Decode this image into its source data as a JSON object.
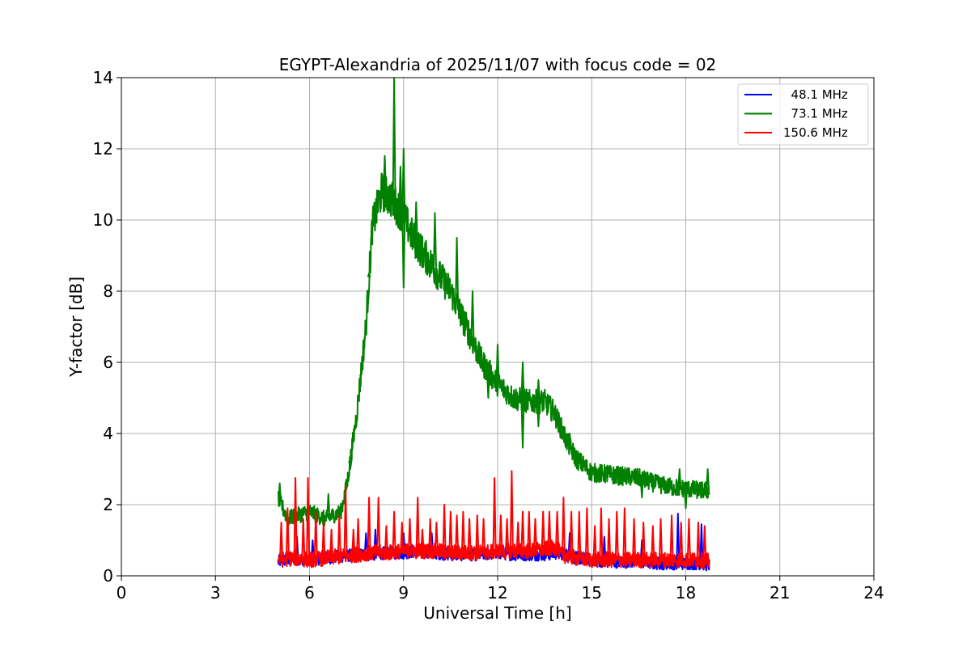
{
  "chart_data": {
    "type": "line",
    "title": "EGYPT-Alexandria of 2025/11/07 with focus code = 02",
    "xlabel": "Universal Time [h]",
    "ylabel": "Y-factor [dB]",
    "xlim": [
      0,
      24
    ],
    "ylim": [
      0,
      14
    ],
    "xticks": [
      0,
      3,
      6,
      9,
      12,
      15,
      18,
      21,
      24
    ],
    "yticks": [
      0,
      2,
      4,
      6,
      8,
      10,
      12,
      14
    ],
    "grid": true,
    "legend_position": "top-right",
    "series": [
      {
        "name": "  48.1 MHz",
        "color": "#0000ff",
        "x": [
          5.0,
          5.5,
          6.0,
          6.5,
          7.0,
          7.5,
          8.0,
          8.5,
          9.0,
          9.5,
          10.0,
          10.5,
          11.0,
          11.5,
          12.0,
          12.5,
          13.0,
          13.5,
          14.0,
          14.5,
          15.0,
          15.5,
          16.0,
          16.5,
          17.0,
          17.5,
          18.0,
          18.5,
          18.75
        ],
        "y": [
          0.4,
          0.5,
          0.45,
          0.5,
          0.55,
          0.6,
          0.6,
          0.65,
          0.65,
          0.7,
          0.65,
          0.6,
          0.6,
          0.6,
          0.65,
          0.6,
          0.6,
          0.6,
          0.65,
          0.5,
          0.45,
          0.4,
          0.4,
          0.4,
          0.35,
          0.35,
          0.35,
          0.35,
          0.3
        ],
        "spikes": [
          [
            5.6,
            1.1
          ],
          [
            6.1,
            1.0
          ],
          [
            7.8,
            1.2
          ],
          [
            8.1,
            1.3
          ],
          [
            9.0,
            1.2
          ],
          [
            9.9,
            1.2
          ],
          [
            13.7,
            1.0
          ],
          [
            14.3,
            1.2
          ],
          [
            15.4,
            1.1
          ],
          [
            16.6,
            1.0
          ],
          [
            17.75,
            1.75
          ],
          [
            18.5,
            1.45
          ]
        ]
      },
      {
        "name": "  73.1 MHz",
        "color": "#008000",
        "x": [
          5.0,
          5.3,
          5.6,
          6.0,
          6.5,
          7.0,
          7.2,
          7.5,
          7.8,
          8.0,
          8.3,
          8.6,
          9.0,
          9.3,
          9.6,
          10.0,
          10.5,
          11.0,
          11.5,
          12.0,
          12.5,
          13.0,
          13.5,
          13.8,
          14.2,
          14.5,
          15.0,
          15.5,
          16.0,
          16.5,
          17.0,
          17.5,
          18.0,
          18.5,
          18.75
        ],
        "y": [
          2.2,
          1.6,
          1.7,
          1.8,
          1.6,
          1.8,
          2.6,
          4.5,
          7.0,
          9.8,
          10.8,
          10.6,
          10.1,
          9.5,
          9.1,
          8.6,
          8.0,
          7.0,
          6.0,
          5.4,
          5.0,
          4.9,
          4.9,
          4.6,
          3.8,
          3.3,
          2.9,
          2.85,
          2.8,
          2.75,
          2.6,
          2.5,
          2.45,
          2.4,
          2.4
        ],
        "spikes": [
          [
            5.05,
            2.6
          ],
          [
            6.6,
            2.3
          ],
          [
            7.3,
            3.0
          ],
          [
            7.9,
            8.5
          ],
          [
            8.4,
            11.8
          ],
          [
            8.7,
            14.0
          ],
          [
            8.9,
            11.5
          ],
          [
            9.0,
            12.0
          ],
          [
            9.4,
            10.5
          ],
          [
            10.0,
            10.2
          ],
          [
            10.7,
            9.5
          ],
          [
            11.2,
            8.0
          ],
          [
            12.0,
            6.5
          ],
          [
            12.8,
            6.0
          ],
          [
            13.3,
            5.5
          ],
          [
            14.3,
            4.0
          ],
          [
            15.5,
            3.1
          ],
          [
            17.8,
            3.0
          ],
          [
            18.7,
            3.0
          ],
          [
            9.0,
            8.1
          ],
          [
            11.7,
            5.0
          ],
          [
            12.8,
            3.6
          ],
          [
            13.3,
            4.2
          ],
          [
            16.6,
            2.2
          ],
          [
            18.0,
            1.9
          ]
        ]
      },
      {
        "name": "150.6 MHz",
        "color": "#ff0000",
        "x": [
          5.0,
          5.5,
          6.0,
          6.5,
          7.0,
          7.5,
          8.0,
          8.5,
          9.0,
          9.5,
          10.0,
          10.5,
          11.0,
          11.5,
          12.0,
          12.5,
          13.0,
          13.5,
          13.9,
          14.0,
          14.3,
          14.5,
          15.0,
          15.5,
          16.0,
          16.5,
          17.0,
          17.5,
          18.0,
          18.5,
          18.75
        ],
        "y": [
          0.45,
          0.5,
          0.45,
          0.5,
          0.55,
          0.6,
          0.65,
          0.65,
          0.7,
          0.7,
          0.7,
          0.65,
          0.65,
          0.65,
          0.7,
          0.7,
          0.7,
          0.75,
          0.8,
          0.6,
          0.55,
          0.5,
          0.45,
          0.45,
          0.45,
          0.45,
          0.45,
          0.45,
          0.45,
          0.45,
          0.4
        ],
        "spikes": [
          [
            5.1,
            1.5
          ],
          [
            5.3,
            1.9
          ],
          [
            5.55,
            2.75
          ],
          [
            5.8,
            1.6
          ],
          [
            5.95,
            2.75
          ],
          [
            6.2,
            1.8
          ],
          [
            6.45,
            1.5
          ],
          [
            6.7,
            1.3
          ],
          [
            6.95,
            1.7
          ],
          [
            7.15,
            2.5
          ],
          [
            7.4,
            1.3
          ],
          [
            7.55,
            1.6
          ],
          [
            7.9,
            2.2
          ],
          [
            8.2,
            2.2
          ],
          [
            8.45,
            1.4
          ],
          [
            8.7,
            1.8
          ],
          [
            8.95,
            1.5
          ],
          [
            9.2,
            1.6
          ],
          [
            9.45,
            2.2
          ],
          [
            9.6,
            1.3
          ],
          [
            9.85,
            1.6
          ],
          [
            10.05,
            1.5
          ],
          [
            10.3,
            2.0
          ],
          [
            10.5,
            1.8
          ],
          [
            10.7,
            1.7
          ],
          [
            10.9,
            1.8
          ],
          [
            11.1,
            1.6
          ],
          [
            11.35,
            1.7
          ],
          [
            11.55,
            1.6
          ],
          [
            11.9,
            2.75
          ],
          [
            12.1,
            1.7
          ],
          [
            12.3,
            1.6
          ],
          [
            12.45,
            2.95
          ],
          [
            12.65,
            1.5
          ],
          [
            12.8,
            1.8
          ],
          [
            13.0,
            1.8
          ],
          [
            13.2,
            1.6
          ],
          [
            13.45,
            1.8
          ],
          [
            13.65,
            1.8
          ],
          [
            13.9,
            1.8
          ],
          [
            14.1,
            2.2
          ],
          [
            14.35,
            1.8
          ],
          [
            14.6,
            1.8
          ],
          [
            14.85,
            1.9
          ],
          [
            15.1,
            1.4
          ],
          [
            15.3,
            1.9
          ],
          [
            15.55,
            1.6
          ],
          [
            15.8,
            1.8
          ],
          [
            16.05,
            1.9
          ],
          [
            16.35,
            1.6
          ],
          [
            16.65,
            1.5
          ],
          [
            16.95,
            1.4
          ],
          [
            17.2,
            1.6
          ],
          [
            17.55,
            1.7
          ],
          [
            17.85,
            1.5
          ],
          [
            18.1,
            1.6
          ],
          [
            18.4,
            1.5
          ],
          [
            18.6,
            1.4
          ]
        ]
      }
    ]
  }
}
